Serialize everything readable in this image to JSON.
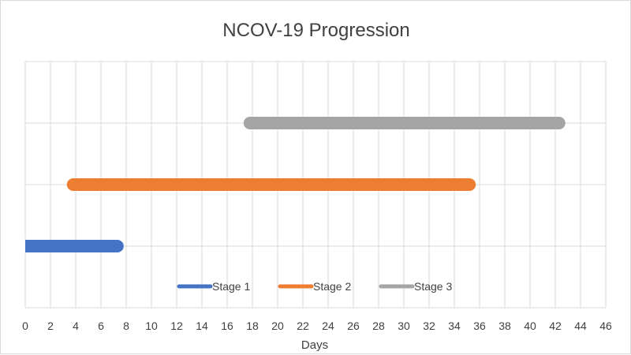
{
  "chart_data": {
    "type": "bar",
    "orientation": "horizontal",
    "title": "NCOV-19 Progression",
    "xlabel": "Days",
    "ylabel": "",
    "xlim": [
      0,
      46
    ],
    "x_ticks": [
      0,
      2,
      4,
      6,
      8,
      10,
      12,
      14,
      16,
      18,
      20,
      22,
      24,
      26,
      28,
      30,
      32,
      34,
      36,
      38,
      40,
      42,
      44,
      46
    ],
    "grid": true,
    "legend_position": "bottom-center",
    "series": [
      {
        "name": "Stage 1",
        "start": 0,
        "end": 7.3,
        "color": "#4472C4"
      },
      {
        "name": "Stage 2",
        "start": 3.8,
        "end": 35.2,
        "color": "#ED7D31"
      },
      {
        "name": "Stage 3",
        "start": 17.8,
        "end": 42.3,
        "color": "#A5A5A5"
      }
    ]
  }
}
